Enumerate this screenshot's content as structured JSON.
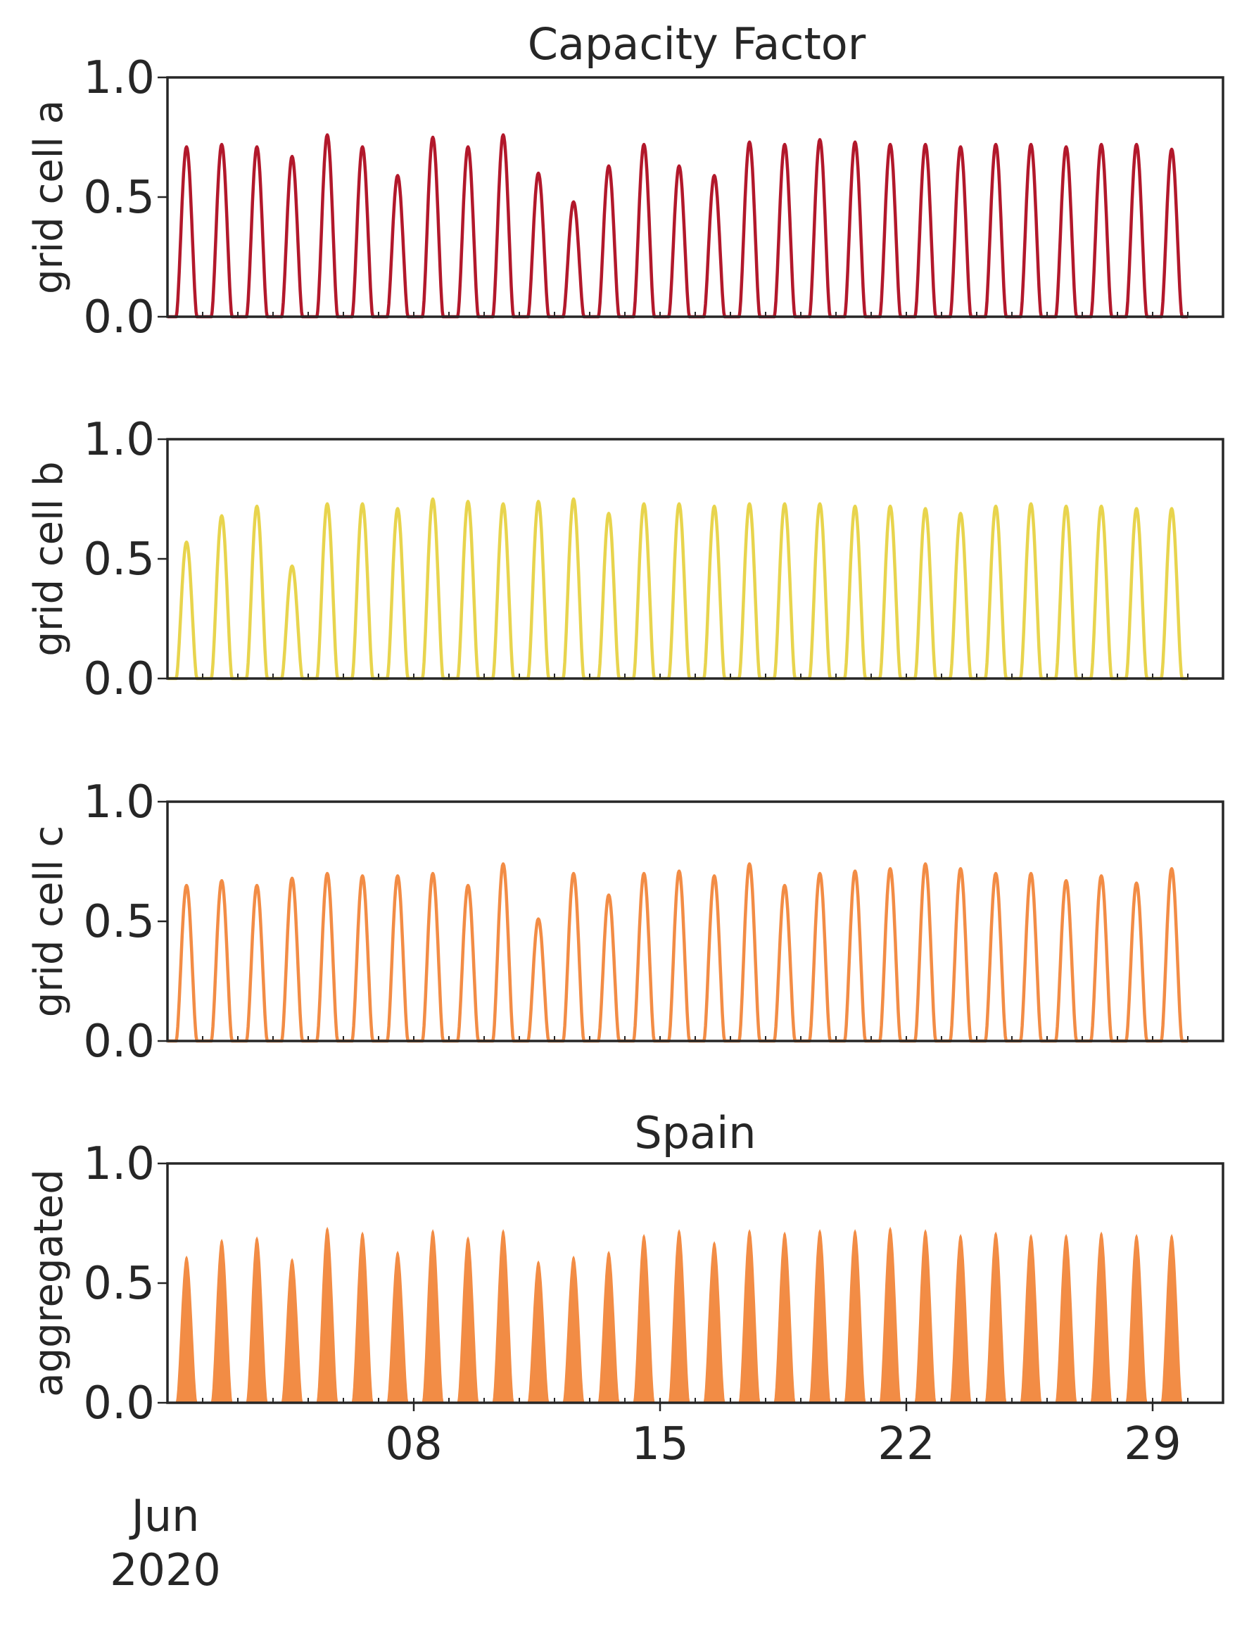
{
  "figure": {
    "title": "Capacity Factor",
    "x_month_label": "Jun",
    "x_year_label": "2020"
  },
  "colors": {
    "grid_cell_a": "#b2182b",
    "grid_cell_b": "#e8d44d",
    "grid_cell_c": "#f28c45",
    "aggregated": "#f28c45",
    "axes": "#262626"
  },
  "chart_data": [
    {
      "type": "line",
      "title": "",
      "xlabel": "",
      "ylabel": "grid cell a",
      "ylim": [
        0,
        1
      ],
      "yticks": [
        "0.0",
        "0.5",
        "1.0"
      ],
      "xlim": [
        "2020-06-01",
        "2020-07-01"
      ],
      "xticks": [],
      "show_xticklabels": false,
      "grid": false,
      "x_resolution": "hourly",
      "series": [
        {
          "style": "line",
          "color_key": "grid_cell_a",
          "daily_peak": [
            0.71,
            0.72,
            0.71,
            0.67,
            0.76,
            0.71,
            0.59,
            0.75,
            0.71,
            0.76,
            0.6,
            0.48,
            0.63,
            0.72,
            0.63,
            0.59,
            0.73,
            0.72,
            0.74,
            0.73,
            0.72,
            0.72,
            0.71,
            0.72,
            0.72,
            0.71,
            0.72,
            0.72,
            0.7
          ],
          "peak_dates": [
            "2020-06-01",
            "2020-06-02",
            "2020-06-03",
            "2020-06-04",
            "2020-06-05",
            "2020-06-06",
            "2020-06-07",
            "2020-06-08",
            "2020-06-09",
            "2020-06-10",
            "2020-06-11",
            "2020-06-12",
            "2020-06-13",
            "2020-06-14",
            "2020-06-15",
            "2020-06-16",
            "2020-06-17",
            "2020-06-18",
            "2020-06-19",
            "2020-06-20",
            "2020-06-21",
            "2020-06-22",
            "2020-06-23",
            "2020-06-24",
            "2020-06-25",
            "2020-06-26",
            "2020-06-27",
            "2020-06-28",
            "2020-06-29"
          ]
        }
      ]
    },
    {
      "type": "line",
      "title": "",
      "xlabel": "",
      "ylabel": "grid cell b",
      "ylim": [
        0,
        1
      ],
      "yticks": [
        "0.0",
        "0.5",
        "1.0"
      ],
      "xlim": [
        "2020-06-01",
        "2020-07-01"
      ],
      "xticks": [],
      "show_xticklabels": false,
      "grid": false,
      "x_resolution": "hourly",
      "series": [
        {
          "style": "line",
          "color_key": "grid_cell_b",
          "daily_peak": [
            0.57,
            0.68,
            0.72,
            0.47,
            0.73,
            0.73,
            0.71,
            0.75,
            0.74,
            0.73,
            0.74,
            0.75,
            0.69,
            0.73,
            0.73,
            0.72,
            0.73,
            0.73,
            0.73,
            0.72,
            0.72,
            0.71,
            0.69,
            0.72,
            0.73,
            0.72,
            0.72,
            0.71,
            0.71
          ],
          "peak_dates": [
            "2020-06-01",
            "2020-06-02",
            "2020-06-03",
            "2020-06-04",
            "2020-06-05",
            "2020-06-06",
            "2020-06-07",
            "2020-06-08",
            "2020-06-09",
            "2020-06-10",
            "2020-06-11",
            "2020-06-12",
            "2020-06-13",
            "2020-06-14",
            "2020-06-15",
            "2020-06-16",
            "2020-06-17",
            "2020-06-18",
            "2020-06-19",
            "2020-06-20",
            "2020-06-21",
            "2020-06-22",
            "2020-06-23",
            "2020-06-24",
            "2020-06-25",
            "2020-06-26",
            "2020-06-27",
            "2020-06-28",
            "2020-06-29"
          ]
        }
      ]
    },
    {
      "type": "line",
      "title": "",
      "xlabel": "",
      "ylabel": "grid cell c",
      "ylim": [
        0,
        1
      ],
      "yticks": [
        "0.0",
        "0.5",
        "1.0"
      ],
      "xlim": [
        "2020-06-01",
        "2020-07-01"
      ],
      "xticks": [],
      "show_xticklabels": false,
      "grid": false,
      "x_resolution": "hourly",
      "series": [
        {
          "style": "line",
          "color_key": "grid_cell_c",
          "daily_peak": [
            0.65,
            0.67,
            0.65,
            0.68,
            0.7,
            0.69,
            0.69,
            0.7,
            0.65,
            0.74,
            0.51,
            0.7,
            0.61,
            0.7,
            0.71,
            0.69,
            0.74,
            0.65,
            0.7,
            0.71,
            0.72,
            0.74,
            0.72,
            0.7,
            0.7,
            0.67,
            0.69,
            0.66,
            0.72
          ],
          "peak_dates": [
            "2020-06-01",
            "2020-06-02",
            "2020-06-03",
            "2020-06-04",
            "2020-06-05",
            "2020-06-06",
            "2020-06-07",
            "2020-06-08",
            "2020-06-09",
            "2020-06-10",
            "2020-06-11",
            "2020-06-12",
            "2020-06-13",
            "2020-06-14",
            "2020-06-15",
            "2020-06-16",
            "2020-06-17",
            "2020-06-18",
            "2020-06-19",
            "2020-06-20",
            "2020-06-21",
            "2020-06-22",
            "2020-06-23",
            "2020-06-24",
            "2020-06-25",
            "2020-06-26",
            "2020-06-27",
            "2020-06-28",
            "2020-06-29"
          ]
        }
      ]
    },
    {
      "type": "area",
      "title": "Spain",
      "xlabel": "",
      "ylabel": "aggregated",
      "ylim": [
        0,
        1
      ],
      "yticks": [
        "0.0",
        "0.5",
        "1.0"
      ],
      "xlim": [
        "2020-06-01",
        "2020-07-01"
      ],
      "xticks": [
        "2020-06-08",
        "2020-06-15",
        "2020-06-22",
        "2020-06-29"
      ],
      "xtick_labels": [
        "08",
        "15",
        "22",
        "29"
      ],
      "show_xticklabels": true,
      "grid": false,
      "x_resolution": "hourly",
      "series": [
        {
          "style": "area",
          "color_key": "aggregated",
          "daily_peak": [
            0.61,
            0.68,
            0.69,
            0.6,
            0.73,
            0.71,
            0.63,
            0.72,
            0.69,
            0.72,
            0.59,
            0.61,
            0.63,
            0.7,
            0.72,
            0.67,
            0.72,
            0.71,
            0.72,
            0.72,
            0.73,
            0.72,
            0.7,
            0.71,
            0.7,
            0.7,
            0.71,
            0.7,
            0.7
          ],
          "peak_dates": [
            "2020-06-01",
            "2020-06-02",
            "2020-06-03",
            "2020-06-04",
            "2020-06-05",
            "2020-06-06",
            "2020-06-07",
            "2020-06-08",
            "2020-06-09",
            "2020-06-10",
            "2020-06-11",
            "2020-06-12",
            "2020-06-13",
            "2020-06-14",
            "2020-06-15",
            "2020-06-16",
            "2020-06-17",
            "2020-06-18",
            "2020-06-19",
            "2020-06-20",
            "2020-06-21",
            "2020-06-22",
            "2020-06-23",
            "2020-06-24",
            "2020-06-25",
            "2020-06-26",
            "2020-06-27",
            "2020-06-28",
            "2020-06-29"
          ]
        }
      ]
    }
  ]
}
